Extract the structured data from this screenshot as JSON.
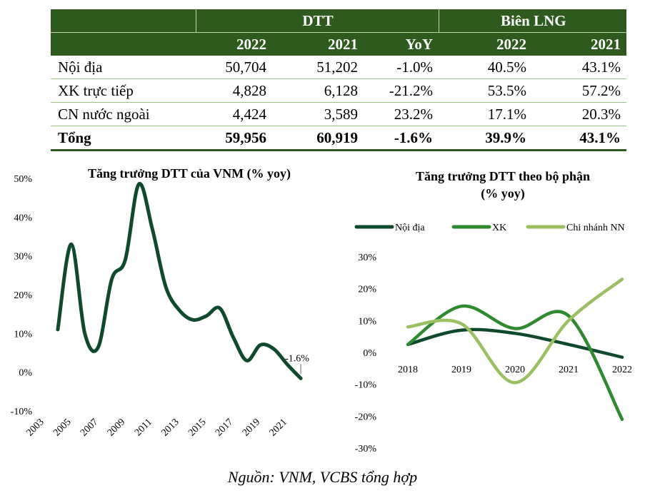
{
  "table": {
    "group_headers": [
      "DTT",
      "Biên LNG"
    ],
    "columns": [
      "2022",
      "2021",
      "YoY",
      "2022",
      "2021"
    ],
    "rows": [
      {
        "label": "Nội địa",
        "values": [
          "50,704",
          "51,202",
          "-1.0%",
          "40.5%",
          "43.1%"
        ]
      },
      {
        "label": "XK trực tiếp",
        "values": [
          "4,828",
          "6,128",
          "-21.2%",
          "53.5%",
          "57.2%"
        ]
      },
      {
        "label": "CN nước ngoài",
        "values": [
          "4,424",
          "3,589",
          "23.2%",
          "17.1%",
          "20.3%"
        ]
      }
    ],
    "total": {
      "label": "Tổng",
      "values": [
        "59,956",
        "60,919",
        "-1.6%",
        "39.9%",
        "43.1%"
      ]
    }
  },
  "chart_data": [
    {
      "type": "line",
      "title": "Tăng trưởng DTT của VNM (% yoy)",
      "x": [
        2004,
        2005,
        2006,
        2007,
        2008,
        2009,
        2010,
        2011,
        2012,
        2013,
        2014,
        2015,
        2016,
        2017,
        2018,
        2019,
        2020,
        2021,
        2022
      ],
      "series": [
        {
          "name": "VNM",
          "values": [
            11,
            33,
            10,
            6.5,
            24,
            29,
            48.5,
            37,
            22,
            16,
            13.5,
            14.5,
            16.5,
            9,
            3,
            7,
            6,
            2,
            -1.6
          ]
        }
      ],
      "xticks": [
        "2003",
        "2005",
        "2007",
        "2009",
        "2011",
        "2013",
        "2015",
        "2017",
        "2019",
        "2021"
      ],
      "yticks": [
        "50%",
        "40%",
        "30%",
        "20%",
        "10%",
        "0%",
        "-10%"
      ],
      "ylim": [
        -10,
        50
      ],
      "annotation": "-1.6%",
      "color": "#0f4a2c"
    },
    {
      "type": "line",
      "title": [
        "Tăng trưởng DTT theo bộ phận",
        "(% yoy)"
      ],
      "categories": [
        "2018",
        "2019",
        "2020",
        "2021",
        "2022"
      ],
      "series": [
        {
          "name": "Nội địa",
          "values": [
            2.5,
            7,
            6,
            2.5,
            -1.5
          ],
          "color": "#0f4a2c"
        },
        {
          "name": "XK",
          "values": [
            2.5,
            14.5,
            7.5,
            11.5,
            -21
          ],
          "color": "#2f8a2f"
        },
        {
          "name": "Chi nhánh NN",
          "values": [
            8,
            9,
            -9.5,
            10,
            23
          ],
          "color": "#9bc062"
        }
      ],
      "yticks": [
        "30%",
        "20%",
        "10%",
        "0%",
        "-10%",
        "-20%",
        "-30%"
      ],
      "ylim": [
        -30,
        30
      ],
      "legend": "top"
    }
  ],
  "source": "Nguồn: VNM, VCBS tổng hợp"
}
